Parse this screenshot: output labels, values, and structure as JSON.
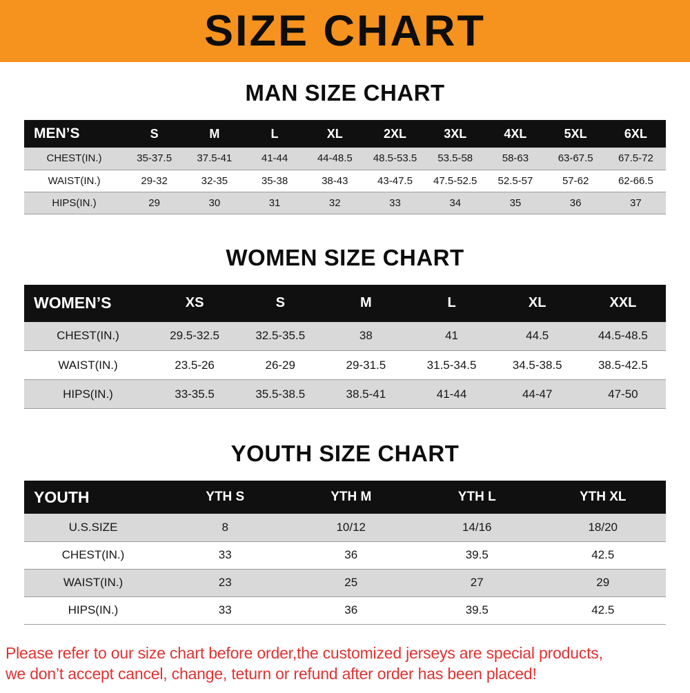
{
  "banner": {
    "title": "SIZE CHART"
  },
  "colors": {
    "banner_bg": "#F6921E",
    "table_header_bg": "#101010",
    "row_stripe": "#D9D9D9",
    "footer_text": "#E03232"
  },
  "chart_data": [
    {
      "type": "table",
      "title": "MAN SIZE CHART",
      "header": [
        "MEN’S",
        "S",
        "M",
        "L",
        "XL",
        "2XL",
        "3XL",
        "4XL",
        "5XL",
        "6XL"
      ],
      "rows": [
        [
          "CHEST(IN.)",
          "35-37.5",
          "37.5-41",
          "41-44",
          "44-48.5",
          "48.5-53.5",
          "53.5-58",
          "58-63",
          "63-67.5",
          "67.5-72"
        ],
        [
          "WAIST(IN.)",
          "29-32",
          "32-35",
          "35-38",
          "38-43",
          "43-47.5",
          "47.5-52.5",
          "52.5-57",
          "57-62",
          "62-66.5"
        ],
        [
          "HIPS(IN.)",
          "29",
          "30",
          "31",
          "32",
          "33",
          "34",
          "35",
          "36",
          "37"
        ]
      ]
    },
    {
      "type": "table",
      "title": "WOMEN SIZE CHART",
      "header": [
        "WOMEN’S",
        "XS",
        "S",
        "M",
        "L",
        "XL",
        "XXL"
      ],
      "rows": [
        [
          "CHEST(IN.)",
          "29.5-32.5",
          "32.5-35.5",
          "38",
          "41",
          "44.5",
          "44.5-48.5"
        ],
        [
          "WAIST(IN.)",
          "23.5-26",
          "26-29",
          "29-31.5",
          "31.5-34.5",
          "34.5-38.5",
          "38.5-42.5"
        ],
        [
          "HIPS(IN.)",
          "33-35.5",
          "35.5-38.5",
          "38.5-41",
          "41-44",
          "44-47",
          "47-50"
        ]
      ]
    },
    {
      "type": "table",
      "title": "YOUTH SIZE CHART",
      "header": [
        "YOUTH",
        "YTH S",
        "YTH M",
        "YTH L",
        "YTH XL"
      ],
      "rows": [
        [
          "U.S.SIZE",
          "8",
          "10/12",
          "14/16",
          "18/20"
        ],
        [
          "CHEST(IN.)",
          "33",
          "36",
          "39.5",
          "42.5"
        ],
        [
          "WAIST(IN.)",
          "23",
          "25",
          "27",
          "29"
        ],
        [
          "HIPS(IN.)",
          "33",
          "36",
          "39.5",
          "42.5"
        ]
      ]
    }
  ],
  "footer": {
    "lines": [
      "Please refer to our size chart before order,the customized jerseys are special products,",
      "we don’t accept cancel, change, teturn or refund after order has been placed!"
    ]
  }
}
